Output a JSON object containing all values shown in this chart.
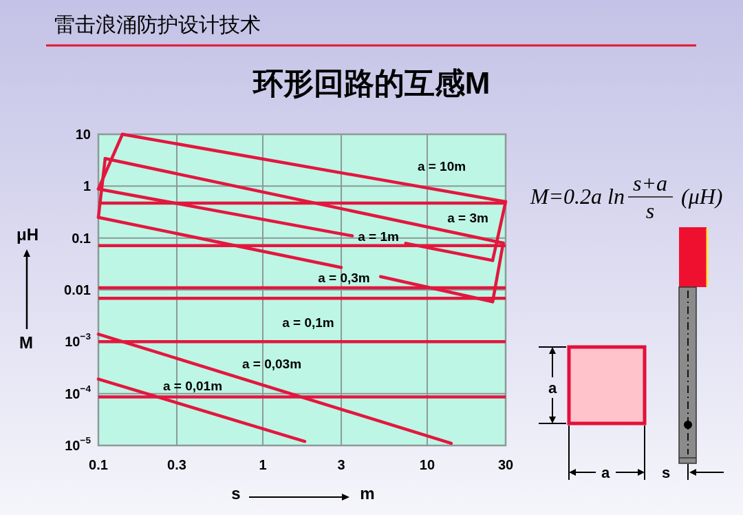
{
  "chart_data": {
    "type": "line",
    "title": "环形回路的互感M",
    "xlabel": "s",
    "ylabel": "M",
    "log": "xy",
    "xlim": [
      0.1,
      30
    ],
    "xticks": [
      0.1,
      0.3,
      1,
      3,
      10,
      30
    ],
    "ylim": [
      1e-05,
      10
    ],
    "yticks": [
      {
        "value": 1e-05,
        "label": "10$^{−5}$"
      },
      {
        "value": 0.0001,
        "label": "10$^{−4}$"
      },
      {
        "value": 0.001,
        "label": "10$^{−3}$"
      },
      0.01,
      0.1,
      1,
      10
    ],
    "grid": true,
    "series": [
      {
        "color": "#e3173e",
        "x": [
          0.14,
          30
        ],
        "values": [
          10,
          0.5
        ]
      },
      {
        "color": "#e3173e",
        "x": [
          0.11,
          29
        ],
        "values": [
          3.4,
          0.08
        ]
      },
      {
        "color": "#e3173e",
        "x": [
          0.1,
          3.5
        ],
        "values": [
          0.88,
          0.11
        ]
      },
      {
        "color": "#e3173e",
        "x": [
          7.4,
          25
        ],
        "values": [
          0.079,
          0.037
        ]
      },
      {
        "color": "#e3173e",
        "x": [
          0.1,
          3.0
        ],
        "values": [
          0.25,
          0.027
        ]
      },
      {
        "color": "#e3173e",
        "x": [
          5.2,
          25
        ],
        "values": [
          0.018,
          0.0059
        ]
      },
      {
        "color": "#e3173e",
        "x": [
          0.1,
          14
        ],
        "values": [
          0.0014,
          1.1e-05
        ]
      },
      {
        "color": "#e3173e",
        "x": [
          0.1,
          1.8
        ],
        "values": [
          0.00019,
          1.2e-05
        ]
      },
      {
        "color": "#e3173e",
        "x": [
          0.14,
          0.1
        ],
        "values": [
          10,
          0.88
        ]
      },
      {
        "color": "#e3173e",
        "x": [
          0.11,
          0.1
        ],
        "values": [
          3.4,
          0.25
        ]
      },
      {
        "color": "#e3173e",
        "x": [
          30,
          25
        ],
        "values": [
          0.5,
          0.037
        ]
      },
      {
        "color": "#e3173e",
        "x": [
          29,
          25
        ],
        "values": [
          0.08,
          0.0059
        ]
      }
    ],
    "ref_lines": [
      {
        "axis": "y",
        "value": 0.47,
        "color": "#e3173e"
      },
      {
        "axis": "y",
        "value": 0.071,
        "color": "#e3173e"
      },
      {
        "axis": "y",
        "value": 0.011,
        "color": "#e3173e"
      },
      {
        "axis": "y",
        "value": 0.0069,
        "color": "#e3173e"
      },
      {
        "axis": "y",
        "value": 0.001,
        "color": "#e3173e"
      },
      {
        "axis": "y",
        "value": 8.6e-05,
        "color": "#e3173e"
      }
    ],
    "annotations": [
      "雷击浪涌防护设计技术",
      "μH",
      "m",
      "M=0.2a ln",
      "s+a",
      "s",
      "(μH)",
      "a",
      "a",
      "s",
      "a = 10m",
      "a = 3m",
      "a = 1m",
      "a = 0,3m",
      "a = 0,1m",
      "a = 0,03m",
      "a = 0,01m"
    ]
  }
}
